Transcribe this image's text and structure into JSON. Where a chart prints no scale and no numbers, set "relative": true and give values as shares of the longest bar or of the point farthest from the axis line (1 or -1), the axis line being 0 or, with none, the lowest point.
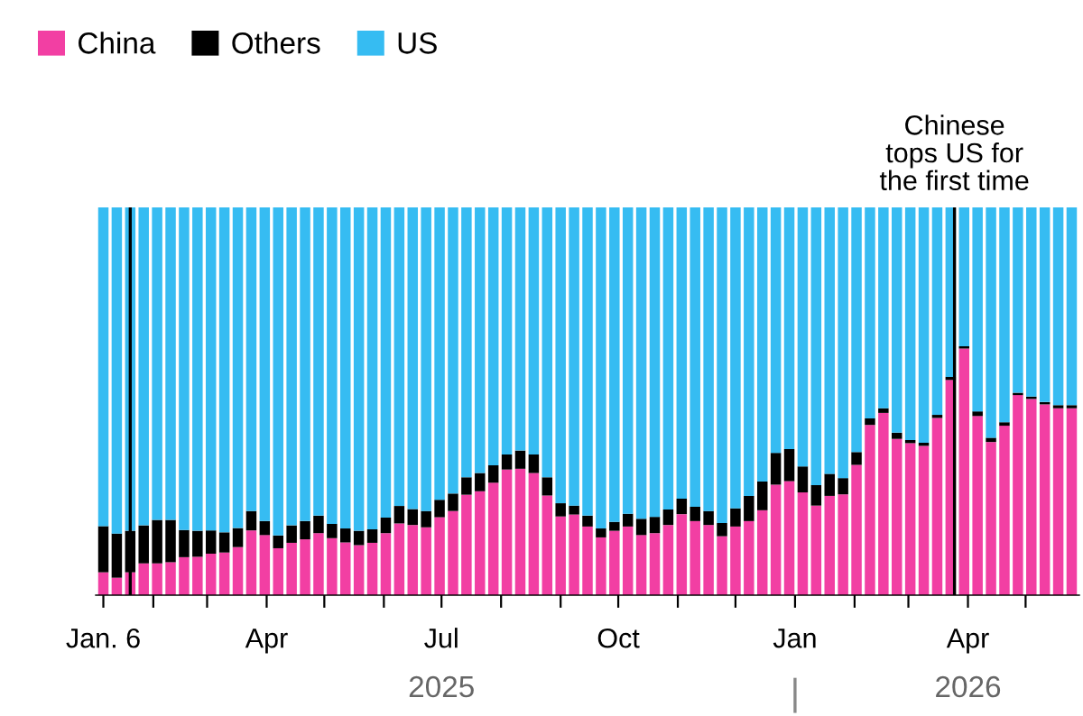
{
  "chart_data": {
    "type": "bar",
    "stacked": true,
    "relative": true,
    "legend": "top left",
    "grid": false,
    "x": [
      "2025-01-06",
      "2025-01-13",
      "2025-01-20",
      "2025-01-27",
      "2025-02-03",
      "2025-02-10",
      "2025-02-17",
      "2025-02-24",
      "2025-03-03",
      "2025-03-10",
      "2025-03-17",
      "2025-03-24",
      "2025-03-31",
      "2025-04-07",
      "2025-04-14",
      "2025-04-21",
      "2025-04-28",
      "2025-05-05",
      "2025-05-12",
      "2025-05-19",
      "2025-05-26",
      "2025-06-02",
      "2025-06-09",
      "2025-06-16",
      "2025-06-23",
      "2025-06-30",
      "2025-07-07",
      "2025-07-14",
      "2025-07-21",
      "2025-07-28",
      "2025-08-04",
      "2025-08-11",
      "2025-08-18",
      "2025-08-25",
      "2025-09-01",
      "2025-09-08",
      "2025-09-15",
      "2025-09-22",
      "2025-09-29",
      "2025-10-06",
      "2025-10-13",
      "2025-10-20",
      "2025-10-27",
      "2025-11-03",
      "2025-11-10",
      "2025-11-17",
      "2025-11-24",
      "2025-12-01",
      "2025-12-08",
      "2025-12-15",
      "2025-12-22",
      "2025-12-29",
      "2026-01-05",
      "2026-01-12",
      "2026-01-19",
      "2026-01-26",
      "2026-02-02",
      "2026-02-09",
      "2026-02-16",
      "2026-02-23",
      "2026-03-02",
      "2026-03-09",
      "2026-03-16",
      "2026-03-23",
      "2026-03-30",
      "2026-04-06",
      "2026-04-13",
      "2026-04-20",
      "2026-04-27",
      "2026-05-04",
      "2026-05-11",
      "2026-05-18",
      "2026-05-25"
    ],
    "series": [
      {
        "name": "China",
        "color": "#f23fa3",
        "values": [
          0.059,
          0.045,
          0.059,
          0.082,
          0.082,
          0.085,
          0.098,
          0.099,
          0.107,
          0.11,
          0.124,
          0.167,
          0.155,
          0.121,
          0.135,
          0.144,
          0.16,
          0.147,
          0.136,
          0.129,
          0.135,
          0.16,
          0.185,
          0.181,
          0.175,
          0.201,
          0.217,
          0.259,
          0.268,
          0.29,
          0.324,
          0.326,
          0.315,
          0.257,
          0.203,
          0.208,
          0.177,
          0.149,
          0.166,
          0.177,
          0.155,
          0.16,
          0.181,
          0.209,
          0.191,
          0.181,
          0.152,
          0.177,
          0.191,
          0.219,
          0.285,
          0.294,
          0.265,
          0.231,
          0.256,
          0.26,
          0.336,
          0.439,
          0.47,
          0.403,
          0.392,
          0.385,
          0.457,
          0.555,
          0.636,
          0.462,
          0.395,
          0.437,
          0.516,
          0.506,
          0.492,
          0.482,
          0.482
        ]
      },
      {
        "name": "Others",
        "color": "#000000",
        "values": [
          0.119,
          0.114,
          0.107,
          0.098,
          0.112,
          0.109,
          0.07,
          0.067,
          0.06,
          0.052,
          0.049,
          0.05,
          0.036,
          0.033,
          0.045,
          0.047,
          0.045,
          0.037,
          0.036,
          0.037,
          0.035,
          0.04,
          0.045,
          0.041,
          0.042,
          0.045,
          0.045,
          0.045,
          0.047,
          0.045,
          0.039,
          0.047,
          0.048,
          0.047,
          0.034,
          0.023,
          0.028,
          0.023,
          0.023,
          0.033,
          0.042,
          0.042,
          0.04,
          0.04,
          0.037,
          0.036,
          0.034,
          0.047,
          0.065,
          0.074,
          0.082,
          0.083,
          0.067,
          0.053,
          0.057,
          0.042,
          0.033,
          0.017,
          0.012,
          0.016,
          0.008,
          0.008,
          0.008,
          0.008,
          0.006,
          0.012,
          0.011,
          0.009,
          0.006,
          0.006,
          0.006,
          0.008,
          0.008
        ]
      },
      {
        "name": "US",
        "color": "#36bcf2",
        "values": [
          0.822,
          0.841,
          0.834,
          0.82,
          0.806,
          0.806,
          0.832,
          0.834,
          0.833,
          0.838,
          0.827,
          0.783,
          0.809,
          0.846,
          0.82,
          0.809,
          0.795,
          0.816,
          0.828,
          0.834,
          0.83,
          0.8,
          0.77,
          0.778,
          0.783,
          0.754,
          0.738,
          0.696,
          0.685,
          0.665,
          0.637,
          0.627,
          0.637,
          0.696,
          0.763,
          0.769,
          0.795,
          0.828,
          0.811,
          0.79,
          0.803,
          0.798,
          0.779,
          0.751,
          0.772,
          0.783,
          0.814,
          0.776,
          0.744,
          0.707,
          0.633,
          0.623,
          0.668,
          0.716,
          0.687,
          0.698,
          0.631,
          0.544,
          0.518,
          0.581,
          0.6,
          0.607,
          0.535,
          0.437,
          0.358,
          0.526,
          0.594,
          0.554,
          0.478,
          0.488,
          0.502,
          0.51,
          0.51
        ]
      }
    ],
    "xlim": [
      "2025-01-02",
      "2026-05-29"
    ],
    "xticks": [
      {
        "value": "2025-01-06",
        "label": "Jan. 6"
      },
      {
        "value": "2025-02-01",
        "label": null
      },
      {
        "value": "2025-03-01",
        "label": null
      },
      {
        "value": "2025-04-01",
        "label": "Apr"
      },
      {
        "value": "2025-05-01",
        "label": null
      },
      {
        "value": "2025-06-01",
        "label": null
      },
      {
        "value": "2025-07-01",
        "label": "Jul"
      },
      {
        "value": "2025-08-01",
        "label": null
      },
      {
        "value": "2025-09-01",
        "label": null
      },
      {
        "value": "2025-10-01",
        "label": "Oct"
      },
      {
        "value": "2025-11-01",
        "label": null
      },
      {
        "value": "2025-12-01",
        "label": null
      },
      {
        "value": "2026-01-01",
        "label": "Jan"
      },
      {
        "value": "2026-02-01",
        "label": null
      },
      {
        "value": "2026-03-01",
        "label": null
      },
      {
        "value": "2026-04-01",
        "label": "Apr"
      },
      {
        "value": "2026-05-01",
        "label": null
      }
    ],
    "x2lim": [
      "2025-01-02",
      "2026-05-29"
    ],
    "x2ticks": [
      {
        "value": "2025-07-01",
        "label": "2025"
      },
      {
        "value": "2026-01-01",
        "label": null
      },
      {
        "value": "2026-04-01",
        "label": "2026"
      }
    ],
    "ref_lines": [
      {
        "axis": "x",
        "value": "2025-01-20",
        "label": null,
        "color": "#000000"
      },
      {
        "axis": "x",
        "value": "2026-03-25",
        "label": "Chinese\ntops US for\nthe first time",
        "color": "#000000"
      }
    ]
  }
}
